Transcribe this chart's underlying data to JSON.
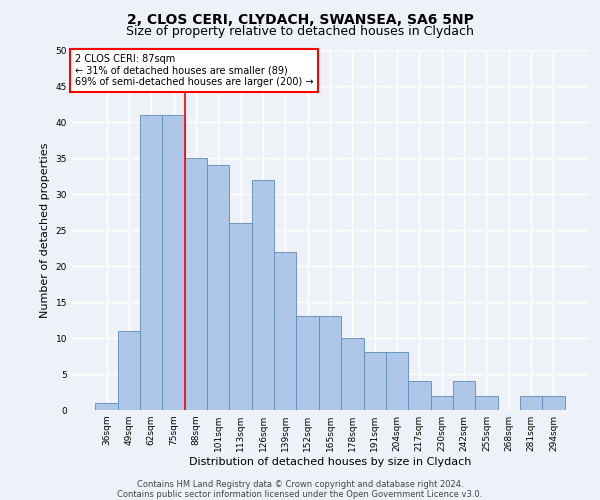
{
  "title1": "2, CLOS CERI, CLYDACH, SWANSEA, SA6 5NP",
  "title2": "Size of property relative to detached houses in Clydach",
  "xlabel": "Distribution of detached houses by size in Clydach",
  "ylabel": "Number of detached properties",
  "categories": [
    "36sqm",
    "49sqm",
    "62sqm",
    "75sqm",
    "88sqm",
    "101sqm",
    "113sqm",
    "126sqm",
    "139sqm",
    "152sqm",
    "165sqm",
    "178sqm",
    "191sqm",
    "204sqm",
    "217sqm",
    "230sqm",
    "242sqm",
    "255sqm",
    "268sqm",
    "281sqm",
    "294sqm"
  ],
  "values": [
    1,
    11,
    41,
    41,
    35,
    34,
    26,
    32,
    22,
    13,
    13,
    10,
    8,
    8,
    4,
    2,
    4,
    2,
    0,
    2,
    2
  ],
  "bar_color": "#aec6e8",
  "bar_edge_color": "#5b8db8",
  "vline_x_index": 3.5,
  "annotation_text_line1": "2 CLOS CERI: 87sqm",
  "annotation_text_line2": "← 31% of detached houses are smaller (89)",
  "annotation_text_line3": "69% of semi-detached houses are larger (200) →",
  "annotation_box_color": "white",
  "annotation_box_edge_color": "red",
  "vline_color": "red",
  "ylim": [
    0,
    50
  ],
  "yticks": [
    0,
    5,
    10,
    15,
    20,
    25,
    30,
    35,
    40,
    45,
    50
  ],
  "footer1": "Contains HM Land Registry data © Crown copyright and database right 2024.",
  "footer2": "Contains public sector information licensed under the Open Government Licence v3.0.",
  "bg_color": "#eef2f8",
  "grid_color": "#ffffff",
  "title1_fontsize": 10,
  "title2_fontsize": 9,
  "xlabel_fontsize": 8,
  "ylabel_fontsize": 8,
  "footer_fontsize": 6,
  "annot_fontsize": 7,
  "tick_fontsize": 6.5
}
